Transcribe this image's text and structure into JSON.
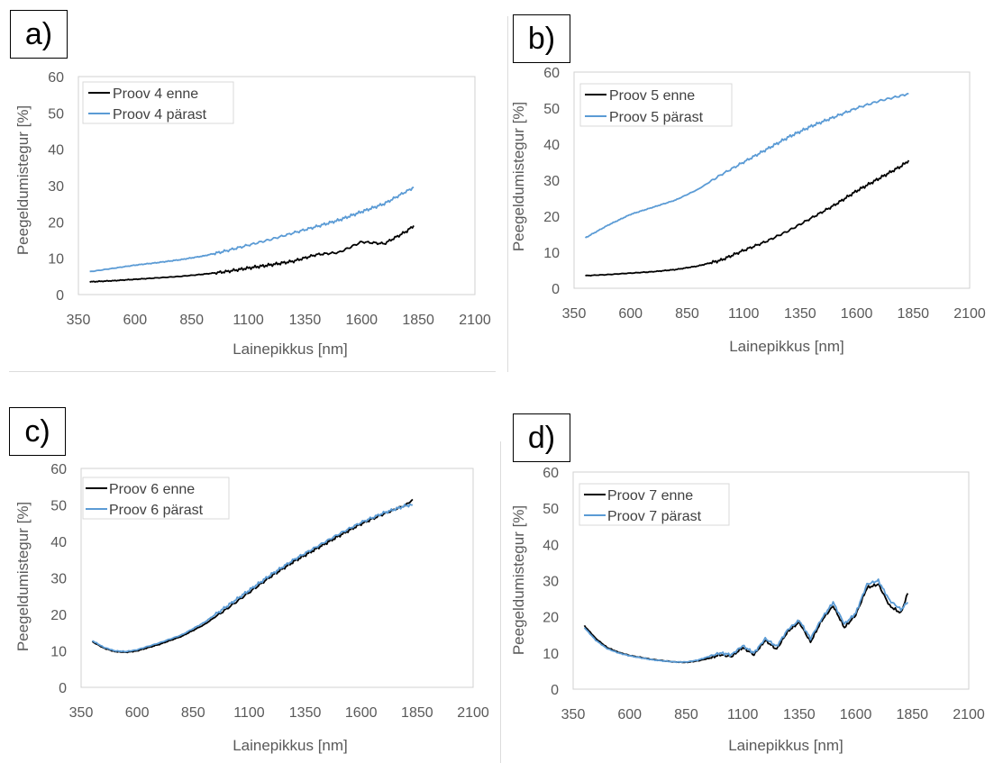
{
  "chart_data": [
    {
      "panel_label": "a)",
      "type": "line",
      "xlabel": "Lainepikkus [nm]",
      "ylabel": "Peegeldumistegur [%]",
      "xlim": [
        350,
        2100
      ],
      "ylim": [
        0,
        60
      ],
      "xticks": [
        350,
        600,
        850,
        1100,
        1350,
        1600,
        1850,
        2100
      ],
      "yticks": [
        0,
        10,
        20,
        30,
        40,
        50,
        60
      ],
      "grid": false,
      "legend": "top-left",
      "series": [
        {
          "name": "Proov 4 enne",
          "color": "#000000",
          "x": [
            400,
            500,
            600,
            700,
            800,
            900,
            1000,
            1100,
            1200,
            1300,
            1400,
            1500,
            1600,
            1700,
            1800,
            1830
          ],
          "y": [
            3.5,
            3.8,
            4.2,
            4.6,
            5.0,
            5.6,
            6.3,
            7.3,
            8.2,
            9.2,
            11.0,
            11.6,
            14.5,
            14.0,
            17.5,
            19.0
          ]
        },
        {
          "name": "Proov 4 pärast",
          "color": "#5b9bd5",
          "x": [
            400,
            500,
            600,
            700,
            800,
            900,
            1000,
            1100,
            1200,
            1300,
            1400,
            1500,
            1600,
            1700,
            1800,
            1830
          ],
          "y": [
            6.3,
            7.2,
            8.1,
            8.8,
            9.6,
            10.6,
            12.0,
            13.6,
            15.2,
            17.0,
            18.7,
            20.5,
            22.8,
            25.0,
            28.5,
            29.5
          ]
        }
      ]
    },
    {
      "panel_label": "b)",
      "type": "line",
      "xlabel": "Lainepikkus [nm]",
      "ylabel": "Peegeldumistegur [%]",
      "xlim": [
        350,
        2100
      ],
      "ylim": [
        0,
        60
      ],
      "xticks": [
        350,
        600,
        850,
        1100,
        1350,
        1600,
        1850,
        2100
      ],
      "yticks": [
        0,
        10,
        20,
        30,
        40,
        50,
        60
      ],
      "grid": false,
      "legend": "top-left",
      "series": [
        {
          "name": "Proov 5 enne",
          "color": "#000000",
          "x": [
            400,
            500,
            600,
            700,
            800,
            900,
            1000,
            1100,
            1200,
            1300,
            1400,
            1500,
            1600,
            1700,
            1800,
            1830
          ],
          "y": [
            3.5,
            3.8,
            4.2,
            4.6,
            5.2,
            6.2,
            7.8,
            10.5,
            13.0,
            16.0,
            19.5,
            23.0,
            27.0,
            30.5,
            34.0,
            35.5
          ]
        },
        {
          "name": "Proov 5 pärast",
          "color": "#5b9bd5",
          "x": [
            400,
            500,
            600,
            700,
            800,
            900,
            1000,
            1100,
            1200,
            1300,
            1400,
            1500,
            1600,
            1700,
            1800,
            1830
          ],
          "y": [
            14.0,
            17.5,
            20.5,
            22.5,
            24.5,
            27.5,
            31.5,
            35.0,
            38.5,
            42.0,
            45.0,
            47.5,
            50.0,
            52.0,
            53.5,
            54.0
          ]
        }
      ]
    },
    {
      "panel_label": "c)",
      "type": "line",
      "xlabel": "Lainepikkus [nm]",
      "ylabel": "Peegeldumistegur [%]",
      "xlim": [
        350,
        2100
      ],
      "ylim": [
        0,
        60
      ],
      "xticks": [
        350,
        600,
        850,
        1100,
        1350,
        1600,
        1850,
        2100
      ],
      "yticks": [
        0,
        10,
        20,
        30,
        40,
        50,
        60
      ],
      "grid": false,
      "legend": "top-left",
      "series": [
        {
          "name": "Proov 6 enne",
          "color": "#000000",
          "x": [
            400,
            450,
            500,
            550,
            600,
            700,
            800,
            900,
            1000,
            1100,
            1200,
            1300,
            1400,
            1500,
            1600,
            1700,
            1800,
            1830
          ],
          "y": [
            12.5,
            10.8,
            9.8,
            9.6,
            10.0,
            11.8,
            14.0,
            17.2,
            21.5,
            26.0,
            30.5,
            34.5,
            38.0,
            41.5,
            44.8,
            47.5,
            50.0,
            51.5
          ]
        },
        {
          "name": "Proov 6 pärast",
          "color": "#5b9bd5",
          "x": [
            400,
            450,
            500,
            550,
            600,
            700,
            800,
            900,
            1000,
            1100,
            1200,
            1300,
            1400,
            1500,
            1600,
            1700,
            1800,
            1830
          ],
          "y": [
            12.8,
            11.0,
            10.0,
            9.8,
            10.3,
            12.2,
            14.4,
            17.8,
            22.2,
            26.6,
            31.0,
            35.0,
            38.5,
            42.0,
            45.2,
            47.8,
            49.8,
            50.0
          ]
        }
      ]
    },
    {
      "panel_label": "d)",
      "type": "line",
      "xlabel": "Lainepikkus [nm]",
      "ylabel": "Peegeldumistegur [%]",
      "xlim": [
        350,
        2100
      ],
      "ylim": [
        0,
        60
      ],
      "xticks": [
        350,
        600,
        850,
        1100,
        1350,
        1600,
        1850,
        2100
      ],
      "yticks": [
        0,
        10,
        20,
        30,
        40,
        50,
        60
      ],
      "grid": false,
      "legend": "top-left",
      "series": [
        {
          "name": "Proov 7 enne",
          "color": "#000000",
          "x": [
            400,
            450,
            500,
            550,
            600,
            700,
            800,
            850,
            900,
            950,
            1000,
            1050,
            1100,
            1150,
            1200,
            1250,
            1300,
            1350,
            1400,
            1450,
            1500,
            1550,
            1600,
            1650,
            1700,
            1750,
            1800,
            1830
          ],
          "y": [
            17.5,
            14.0,
            11.5,
            10.2,
            9.3,
            8.2,
            7.5,
            7.4,
            7.8,
            8.5,
            9.5,
            9.0,
            11.5,
            9.5,
            13.5,
            11.0,
            16.0,
            18.5,
            13.0,
            19.0,
            23.0,
            17.0,
            20.5,
            28.0,
            29.0,
            23.0,
            21.0,
            26.5
          ]
        },
        {
          "name": "Proov 7 pärast",
          "color": "#5b9bd5",
          "x": [
            400,
            450,
            500,
            550,
            600,
            700,
            800,
            850,
            900,
            950,
            1000,
            1050,
            1100,
            1150,
            1200,
            1250,
            1300,
            1350,
            1400,
            1450,
            1500,
            1550,
            1600,
            1650,
            1700,
            1750,
            1800,
            1830
          ],
          "y": [
            17.0,
            13.5,
            11.2,
            10.0,
            9.2,
            8.1,
            7.5,
            7.5,
            8.0,
            9.0,
            10.0,
            9.5,
            12.0,
            10.0,
            14.0,
            11.8,
            16.5,
            19.0,
            14.0,
            19.5,
            24.0,
            18.0,
            21.0,
            29.0,
            30.0,
            24.5,
            22.0,
            24.0
          ]
        }
      ]
    }
  ]
}
